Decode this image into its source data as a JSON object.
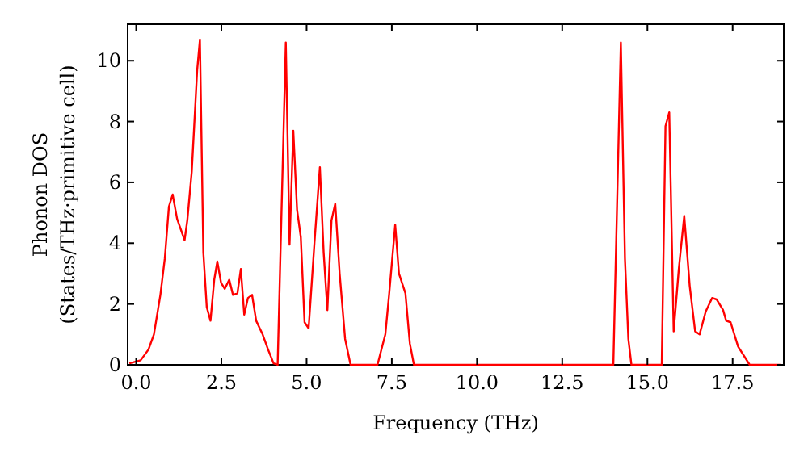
{
  "chart_data": {
    "type": "line",
    "xlabel": "Frequency (THz)",
    "ylabel": "Phonon DOS\n(States/THz·primitive cell)",
    "xlim": [
      -0.25,
      19
    ],
    "ylim": [
      0,
      11.2
    ],
    "xticks": [
      {
        "value": 0,
        "label": "0.0"
      },
      2.5,
      {
        "value": 5,
        "label": "5.0"
      },
      7.5,
      {
        "value": 10,
        "label": "10.0"
      },
      12.5,
      {
        "value": 15,
        "label": "15.0"
      },
      17.5
    ],
    "yticks": [
      0,
      2,
      4,
      6,
      8,
      10
    ],
    "grid": false,
    "marker": "none",
    "line_style": "solid",
    "series": [
      {
        "color": "#ff0000",
        "x": [
          -0.2,
          0.13,
          0.36,
          0.52,
          0.71,
          0.84,
          0.96,
          1.07,
          1.2,
          1.42,
          1.5,
          1.63,
          1.79,
          1.87,
          1.97,
          2.07,
          2.18,
          2.29,
          2.38,
          2.49,
          2.6,
          2.73,
          2.84,
          2.97,
          3.07,
          3.17,
          3.28,
          3.4,
          3.52,
          3.71,
          3.87,
          4.03,
          4.15,
          4.39,
          4.5,
          4.61,
          4.72,
          4.83,
          4.94,
          5.06,
          5.23,
          5.39,
          5.5,
          5.61,
          5.73,
          5.84,
          5.97,
          6.13,
          6.29,
          7.08,
          7.31,
          7.42,
          7.6,
          7.71,
          7.9,
          8.03,
          8.15,
          14.0,
          14.22,
          14.34,
          14.44,
          14.53,
          15.42,
          15.53,
          15.64,
          15.77,
          15.92,
          16.08,
          16.24,
          16.4,
          16.53,
          16.71,
          16.9,
          17.03,
          17.22,
          17.31,
          17.44,
          17.66,
          18.0,
          18.9
        ],
        "values": [
          0.05,
          0.15,
          0.5,
          1.0,
          2.3,
          3.5,
          5.2,
          5.6,
          4.8,
          4.1,
          4.75,
          6.35,
          9.7,
          10.7,
          3.7,
          1.9,
          1.45,
          2.8,
          3.4,
          2.7,
          2.5,
          2.8,
          2.3,
          2.35,
          3.15,
          1.65,
          2.2,
          2.3,
          1.45,
          1.0,
          0.5,
          0.05,
          0,
          10.6,
          3.95,
          7.7,
          5.1,
          4.2,
          1.4,
          1.2,
          4.0,
          6.5,
          3.7,
          1.8,
          4.75,
          5.3,
          3.0,
          0.85,
          0,
          0,
          1.0,
          2.3,
          4.6,
          3.0,
          2.35,
          0.7,
          0,
          0,
          10.6,
          3.5,
          0.85,
          0,
          0,
          7.85,
          8.3,
          1.1,
          3.15,
          4.9,
          2.6,
          1.1,
          1.0,
          1.75,
          2.2,
          2.15,
          1.8,
          1.45,
          1.4,
          0.6,
          0,
          0
        ]
      }
    ]
  }
}
